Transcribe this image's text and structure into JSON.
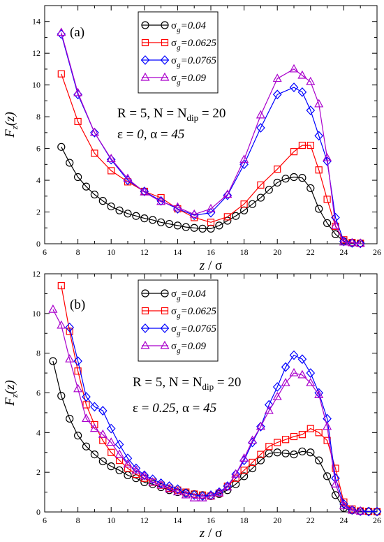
{
  "chart_data": [
    {
      "type": "line",
      "panel_label": "(a)",
      "xlabel_z": "z",
      "xlabel_sep": " / ",
      "xlabel_sigma": "σ",
      "ylabel_F": "F",
      "ylabel_sub": "z",
      "ylabel_arg": "(z)",
      "xlim": [
        6,
        26
      ],
      "ylim": [
        0,
        15
      ],
      "xticks": [
        6,
        8,
        10,
        12,
        14,
        16,
        18,
        20,
        22,
        24,
        26
      ],
      "yticks": [
        0,
        2,
        4,
        6,
        8,
        10,
        12,
        14
      ],
      "annotations": {
        "line1_pre": "R = 5,  N = N",
        "line1_sub": "dip",
        "line1_post": " = 20",
        "line2_eps": "ε = ",
        "line2_eps_val": "0,",
        "line2_alpha": "   α = ",
        "line2_alpha_val": "45"
      },
      "legend_position": "top-center",
      "series": [
        {
          "name_sym": "σ",
          "name_sub": "g",
          "name_val": "=0.04",
          "color": "#000000",
          "marker": "circle",
          "x": [
            7,
            7.5,
            8,
            8.5,
            9,
            9.5,
            10,
            10.5,
            11,
            11.5,
            12,
            12.5,
            13,
            13.5,
            14,
            14.5,
            15,
            15.5,
            16,
            16.5,
            17,
            17.5,
            18,
            18.5,
            19,
            19.5,
            20,
            20.5,
            21,
            21.5,
            22,
            22.5,
            23,
            23.5,
            24,
            24.5,
            25
          ],
          "y": [
            6.1,
            5.1,
            4.2,
            3.6,
            3.1,
            2.7,
            2.35,
            2.1,
            1.9,
            1.75,
            1.6,
            1.5,
            1.35,
            1.25,
            1.15,
            1.05,
            1.0,
            0.95,
            0.95,
            1.15,
            1.45,
            1.75,
            2.1,
            2.5,
            2.9,
            3.4,
            3.85,
            4.1,
            4.2,
            4.15,
            3.5,
            2.2,
            1.3,
            0.6,
            0.15,
            0.05,
            0.03
          ]
        },
        {
          "name_sym": "σ",
          "name_sub": "g",
          "name_val": "=0.0625",
          "color": "#ff0000",
          "marker": "square",
          "x": [
            7,
            8,
            9,
            10,
            11,
            12,
            13,
            14,
            15,
            16,
            17,
            18,
            19,
            20,
            21,
            21.5,
            22,
            22.5,
            23,
            23.5,
            24,
            24.5,
            25
          ],
          "y": [
            10.7,
            7.7,
            5.7,
            4.6,
            3.9,
            3.3,
            2.9,
            2.2,
            1.65,
            1.35,
            1.7,
            2.5,
            3.7,
            4.7,
            5.8,
            6.2,
            6.2,
            4.65,
            2.8,
            1.1,
            0.25,
            0.08,
            0.03
          ]
        },
        {
          "name_sym": "σ",
          "name_sub": "g",
          "name_val": "=0.0765",
          "color": "#0000ff",
          "marker": "diamond",
          "x": [
            7,
            8,
            9,
            10,
            11,
            12,
            13,
            14,
            15,
            16,
            17,
            18,
            19,
            20,
            21,
            21.5,
            22,
            22.5,
            23,
            23.5,
            24,
            24.5,
            25
          ],
          "y": [
            13.2,
            9.4,
            7.0,
            5.3,
            4.0,
            3.3,
            2.7,
            2.2,
            1.8,
            1.95,
            3.05,
            5.0,
            7.3,
            9.4,
            9.85,
            9.55,
            8.4,
            6.8,
            5.2,
            1.65,
            0.15,
            0.05,
            0.02
          ]
        },
        {
          "name_sym": "σ",
          "name_sub": "g",
          "name_val": "=0.09",
          "color": "#aa00cc",
          "marker": "triangle",
          "x": [
            7,
            8,
            9,
            10,
            11,
            12,
            13,
            14,
            15,
            16,
            17,
            18,
            19,
            20,
            21,
            21.5,
            22,
            22.5,
            23,
            23.5,
            24,
            24.5,
            25
          ],
          "y": [
            13.3,
            9.5,
            7.0,
            5.35,
            4.1,
            3.25,
            2.65,
            2.3,
            1.85,
            2.2,
            3.1,
            5.3,
            8.1,
            10.4,
            11.0,
            10.6,
            10.2,
            8.8,
            5.4,
            1.15,
            0.1,
            0.05,
            0.02
          ]
        }
      ]
    },
    {
      "type": "line",
      "panel_label": "(b)",
      "xlabel_z": "z",
      "xlabel_sep": " / ",
      "xlabel_sigma": "σ",
      "ylabel_F": "F",
      "ylabel_sub": "z",
      "ylabel_arg": "(z)",
      "xlim": [
        6,
        26
      ],
      "ylim": [
        0,
        12
      ],
      "xticks": [
        6,
        8,
        10,
        12,
        14,
        16,
        18,
        20,
        22,
        24,
        26
      ],
      "yticks": [
        0,
        2,
        4,
        6,
        8,
        10,
        12
      ],
      "annotations": {
        "line1_pre": "R = 5,  N = N",
        "line1_sub": "dip",
        "line1_post": " = 20",
        "line2_eps": "ε = ",
        "line2_eps_val": "0.25,",
        "line2_alpha": "   α = ",
        "line2_alpha_val": "45"
      },
      "legend_position": "top-center",
      "series": [
        {
          "name_sym": "σ",
          "name_sub": "g",
          "name_val": "=0.04",
          "color": "#000000",
          "marker": "circle",
          "x": [
            6.5,
            7,
            7.5,
            8,
            8.5,
            9,
            9.5,
            10,
            10.5,
            11,
            11.5,
            12,
            12.5,
            13,
            13.5,
            14,
            14.5,
            15,
            15.5,
            16,
            16.5,
            17,
            17.5,
            18,
            18.5,
            19,
            19.5,
            20,
            20.5,
            21,
            21.5,
            22,
            22.5,
            23,
            23.5,
            24,
            24.5,
            25,
            25.5,
            26
          ],
          "y": [
            7.6,
            5.85,
            4.7,
            3.85,
            3.3,
            2.9,
            2.55,
            2.3,
            2.1,
            1.85,
            1.7,
            1.5,
            1.4,
            1.25,
            1.1,
            1.0,
            0.95,
            0.9,
            0.85,
            0.8,
            0.9,
            1.1,
            1.4,
            1.8,
            2.2,
            2.6,
            2.95,
            3.0,
            2.95,
            2.9,
            3.05,
            3.0,
            2.6,
            1.8,
            0.85,
            0.2,
            0.08,
            0.04,
            0.03,
            0.02
          ]
        },
        {
          "name_sym": "σ",
          "name_sub": "g",
          "name_val": "=0.0625",
          "color": "#ff0000",
          "marker": "square",
          "x": [
            7,
            7.5,
            8,
            8.5,
            9,
            9.5,
            10,
            10.5,
            11,
            11.5,
            12,
            12.5,
            13,
            13.5,
            14,
            14.5,
            15,
            15.5,
            16,
            16.5,
            17,
            17.5,
            18,
            18.5,
            19,
            19.5,
            20,
            20.5,
            21,
            21.5,
            22,
            22.5,
            23,
            23.5,
            24,
            24.5,
            25,
            25.5,
            26
          ],
          "y": [
            11.4,
            9.1,
            7.1,
            5.4,
            4.4,
            3.6,
            3.0,
            2.6,
            2.2,
            1.9,
            1.7,
            1.5,
            1.35,
            1.2,
            1.1,
            1.0,
            0.9,
            0.85,
            0.8,
            0.95,
            1.3,
            1.7,
            2.1,
            2.5,
            2.9,
            3.3,
            3.5,
            3.65,
            3.8,
            3.9,
            4.2,
            4.0,
            3.6,
            2.2,
            0.5,
            0.15,
            0.05,
            0.03,
            0.02
          ]
        },
        {
          "name_sym": "σ",
          "name_sub": "g",
          "name_val": "=0.0765",
          "color": "#0000ff",
          "marker": "diamond",
          "x": [
            7.5,
            8,
            8.5,
            9,
            9.5,
            10,
            10.5,
            11,
            11.5,
            12,
            12.5,
            13,
            13.5,
            14,
            14.5,
            15,
            15.5,
            16,
            16.5,
            17,
            17.5,
            18,
            18.5,
            19,
            19.5,
            20,
            20.5,
            21,
            21.5,
            22,
            22.5,
            23,
            23.5,
            24,
            24.5,
            25,
            25.5,
            26
          ],
          "y": [
            9.3,
            7.6,
            5.8,
            5.3,
            5.1,
            4.2,
            3.4,
            2.7,
            2.2,
            1.85,
            1.65,
            1.45,
            1.3,
            1.15,
            0.95,
            0.85,
            0.8,
            0.85,
            1.0,
            1.3,
            1.9,
            2.6,
            3.5,
            4.3,
            5.4,
            6.3,
            7.3,
            7.9,
            7.7,
            7.0,
            6.0,
            4.7,
            1.7,
            0.4,
            0.1,
            0.04,
            0.02,
            0.02
          ]
        },
        {
          "name_sym": "σ",
          "name_sub": "g",
          "name_val": "=0.09",
          "color": "#aa00cc",
          "marker": "triangle",
          "x": [
            6.5,
            7,
            7.5,
            8,
            8.5,
            9,
            9.5,
            10,
            10.5,
            11,
            11.5,
            12,
            12.5,
            13,
            13.5,
            14,
            14.5,
            15,
            15.5,
            16,
            16.5,
            17,
            17.5,
            18,
            18.5,
            19,
            19.5,
            20,
            20.5,
            21,
            21.5,
            22,
            22.5,
            23,
            23.5,
            24,
            24.5,
            25
          ],
          "y": [
            10.2,
            9.4,
            7.7,
            6.2,
            4.7,
            4.2,
            3.9,
            3.5,
            2.9,
            2.4,
            2.1,
            1.8,
            1.5,
            1.35,
            1.15,
            1.0,
            0.85,
            0.7,
            0.7,
            0.8,
            0.95,
            1.25,
            1.9,
            2.7,
            3.6,
            4.3,
            5.1,
            5.8,
            6.5,
            7.0,
            6.9,
            6.5,
            5.9,
            4.3,
            1.4,
            0.3,
            0.08,
            0.03
          ]
        }
      ]
    }
  ]
}
